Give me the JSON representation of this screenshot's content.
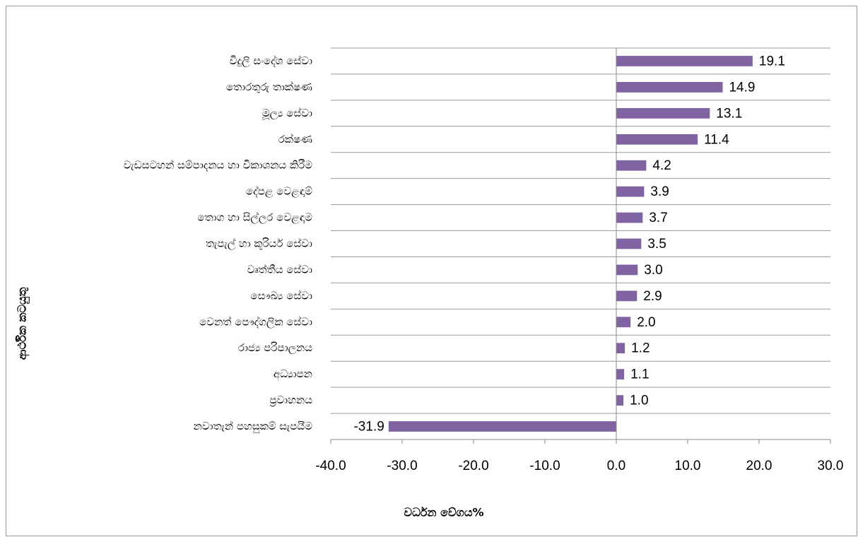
{
  "chart_data": {
    "type": "barh",
    "categories": [
      "විදුලි සංදේශ සේවා",
      "තොරතුරු තාක්ෂණ",
      "මූල්‍ය සේවා",
      "රක්ෂණ",
      "වැඩසටහන් සම්පාදනය හා විකාශනය කිරීම",
      "දේපළ වෙළඳාම්",
      "තොග හා සිල්ලර වෙළඳාම",
      "තැපැල් හා කූරියර් සේවා",
      "වෘත්තීය සේවා",
      "සෞඛ්‍ය සේවා",
      "වෙනත් පෞද්ගලික සේවා",
      "රාජ්‍ය පරිපාලනය",
      "අධ්‍යාපන",
      "ප්‍රවාහනය",
      "නවාතැන් පහසුකම් සැපයීම"
    ],
    "values": [
      19.1,
      14.9,
      13.1,
      11.4,
      4.2,
      3.9,
      3.7,
      3.5,
      3.0,
      2.9,
      2.0,
      1.2,
      1.1,
      1.0,
      -31.9
    ],
    "value_labels": [
      "19.1",
      "14.9",
      "13.1",
      "11.4",
      "4.2",
      "3.9",
      "3.7",
      "3.5",
      "3.0",
      "2.9",
      "2.0",
      "1.2",
      "1.1",
      "1.0",
      "-31.9"
    ],
    "color": "#8064a2",
    "xlabel": "වර්ධන වේගය%",
    "ylabel": "ආර්ථික කටයුතු",
    "xlim": [
      -40,
      30
    ],
    "xticks": [
      {
        "value": -40,
        "label": "-40.0"
      },
      {
        "value": -30,
        "label": "-30.0"
      },
      {
        "value": -20,
        "label": "-20.0"
      },
      {
        "value": -10,
        "label": "-10.0"
      },
      {
        "value": 0,
        "label": "0.0"
      },
      {
        "value": 10,
        "label": "10.0"
      },
      {
        "value": 20,
        "label": "20.0"
      },
      {
        "value": 30,
        "label": "30.0"
      }
    ]
  }
}
